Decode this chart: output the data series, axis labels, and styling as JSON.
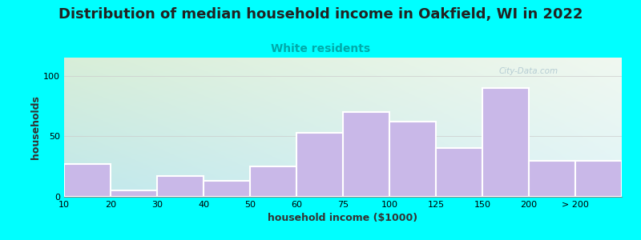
{
  "title": "Distribution of median household income in Oakfield, WI in 2022",
  "subtitle": "White residents",
  "xlabel": "household income ($1000)",
  "ylabel": "households",
  "bar_labels": [
    "10",
    "20",
    "30",
    "40",
    "50",
    "60",
    "75",
    "100",
    "125",
    "150",
    "200",
    "> 200"
  ],
  "bar_values": [
    27,
    5,
    17,
    13,
    25,
    53,
    70,
    62,
    40,
    90,
    30,
    30
  ],
  "bar_color": "#c9b8e8",
  "bar_edge_color": "#ffffff",
  "background_outer": "#00ffff",
  "background_inner_grad_topleft": "#d8eed8",
  "background_inner_grad_bottomright": "#c8e8f0",
  "yticks": [
    0,
    50,
    100
  ],
  "ylim": [
    0,
    115
  ],
  "title_fontsize": 13,
  "subtitle_fontsize": 10,
  "subtitle_color": "#00aaaa",
  "axis_label_fontsize": 9,
  "tick_fontsize": 8,
  "watermark_text": "City-Data.com",
  "watermark_color": "#b0c8d0",
  "title_color": "#222222"
}
